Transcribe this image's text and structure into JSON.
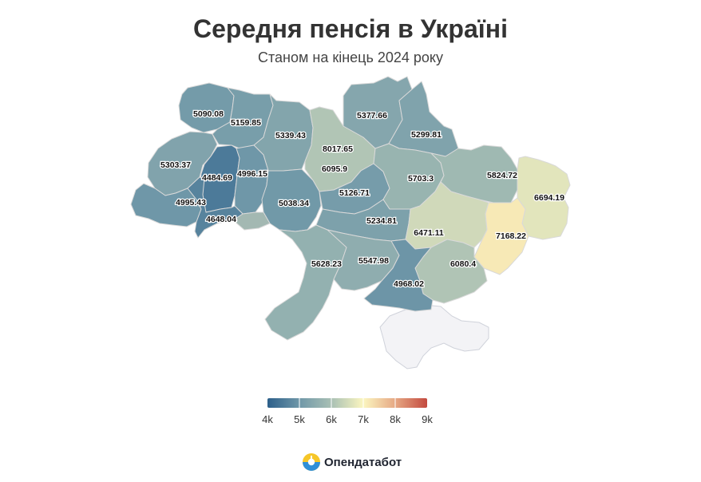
{
  "title": "Середня пенсія в Україні",
  "subtitle": "Станом на кінець 2024 року",
  "color_scale": {
    "min": 4000,
    "max": 9000,
    "stops": [
      "#2c5f8a",
      "#6f97a8",
      "#a9c0b4",
      "#fbf6c0",
      "#e6a884",
      "#c34a3f"
    ],
    "ticks": [
      "4k",
      "5k",
      "6k",
      "7k",
      "8k",
      "9k"
    ]
  },
  "regions": [
    {
      "name": "Volyn",
      "value": 5090.08
    },
    {
      "name": "Rivne",
      "value": 5159.85
    },
    {
      "name": "Zhytomyr",
      "value": 5339.43
    },
    {
      "name": "Kyiv city",
      "value": 8017.65
    },
    {
      "name": "Kyiv oblast",
      "value": 6095.9
    },
    {
      "name": "Chernihiv",
      "value": 5377.66
    },
    {
      "name": "Sumy",
      "value": 5299.81
    },
    {
      "name": "Lviv",
      "value": 5303.37
    },
    {
      "name": "Ternopil",
      "value": 4484.69
    },
    {
      "name": "Khmelnytskyi",
      "value": 4996.15
    },
    {
      "name": "Vinnytsia",
      "value": 5038.34
    },
    {
      "name": "Cherkasy",
      "value": 5126.71
    },
    {
      "name": "Poltava",
      "value": 5703.3
    },
    {
      "name": "Kharkiv",
      "value": 5824.72
    },
    {
      "name": "Luhansk",
      "value": 6694.19
    },
    {
      "name": "Zakarpattia",
      "value": 4995.43
    },
    {
      "name": "Ivano-Frankivsk",
      "value": 4648.04
    },
    {
      "name": "Chernivtsi",
      "value": null
    },
    {
      "name": "Kirovohrad",
      "value": 5234.81
    },
    {
      "name": "Dnipropetrovsk",
      "value": 6471.11
    },
    {
      "name": "Donetsk",
      "value": 7168.22
    },
    {
      "name": "Zaporizhzhia",
      "value": 6080.4
    },
    {
      "name": "Odesa",
      "value": 5628.23
    },
    {
      "name": "Mykolaiv",
      "value": 5547.98
    },
    {
      "name": "Kherson",
      "value": 4968.02
    },
    {
      "name": "Crimea",
      "value": null
    }
  ],
  "brand": {
    "name": "Опендатабот",
    "icon": "opendatabot-logo-icon"
  }
}
